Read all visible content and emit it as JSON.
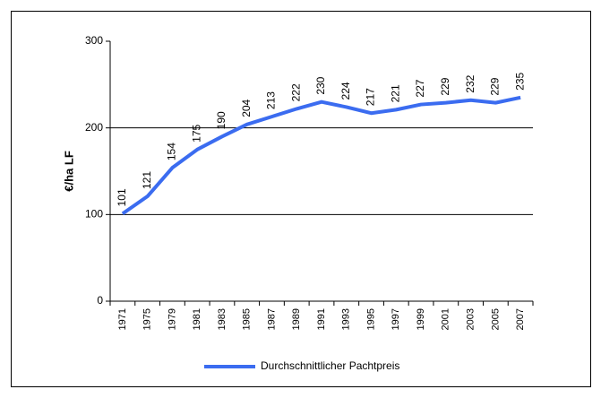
{
  "chart_data": {
    "type": "line",
    "y_label": "€/ha LF",
    "categories": [
      "1971",
      "1975",
      "1979",
      "1981",
      "1983",
      "1985",
      "1987",
      "1989",
      "1991",
      "1993",
      "1995",
      "1997",
      "1999",
      "2001",
      "2003",
      "2005",
      "2007"
    ],
    "series": [
      {
        "name": "Durchschnittlicher Pachtpreis",
        "color": "#3b6cf0",
        "values": [
          101,
          121,
          154,
          175,
          190,
          204,
          213,
          222,
          230,
          224,
          217,
          221,
          227,
          229,
          232,
          229,
          235
        ]
      }
    ],
    "ylim": [
      0,
      300
    ],
    "yticks": [
      0,
      100,
      200,
      300
    ],
    "grid": true,
    "legend": "bottom"
  }
}
